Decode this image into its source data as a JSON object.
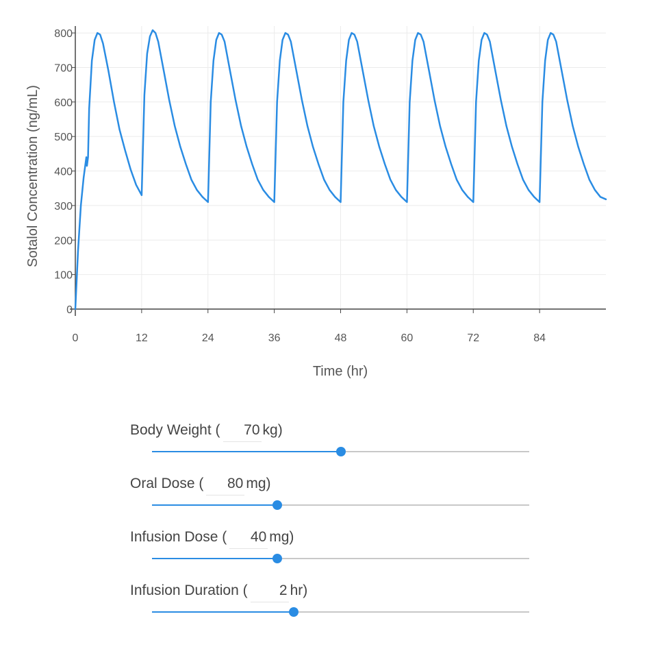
{
  "chart_data": {
    "type": "line",
    "xlabel": "Time (hr)",
    "ylabel": "Sotalol Concentration (ng/mL)",
    "xlim": [
      0,
      96
    ],
    "ylim": [
      0,
      820
    ],
    "xticks": [
      0,
      12,
      24,
      36,
      48,
      60,
      72,
      84
    ],
    "yticks": [
      0,
      100,
      200,
      300,
      400,
      500,
      600,
      700,
      800
    ],
    "grid": true,
    "line_color": "#2a8ce3",
    "series": [
      {
        "x": [
          0,
          0.5,
          1,
          1.5,
          2,
          2.1,
          2.3,
          2.5,
          3,
          3.5,
          4,
          4.5,
          5,
          5.5,
          6,
          7,
          8,
          9,
          10,
          11,
          12,
          12.5,
          13,
          13.5,
          14,
          14.5,
          15,
          16,
          17,
          18,
          19,
          20,
          21,
          22,
          23,
          24,
          24.5,
          25,
          25.5,
          26,
          26.5,
          27,
          28,
          29,
          30,
          31,
          32,
          33,
          34,
          35,
          36,
          36.5,
          37,
          37.5,
          38,
          38.5,
          39,
          40,
          41,
          42,
          43,
          44,
          45,
          46,
          47,
          48,
          48.5,
          49,
          49.5,
          50,
          50.5,
          51,
          52,
          53,
          54,
          55,
          56,
          57,
          58,
          59,
          60,
          60.5,
          61,
          61.5,
          62,
          62.5,
          63,
          64,
          65,
          66,
          67,
          68,
          69,
          70,
          71,
          72,
          72.5,
          73,
          73.5,
          74,
          74.5,
          75,
          76,
          77,
          78,
          79,
          80,
          81,
          82,
          83,
          84,
          84.5,
          85,
          85.5,
          86,
          86.5,
          87,
          88,
          89,
          90,
          91,
          92,
          93,
          94,
          95,
          96
        ],
        "y": [
          0,
          170,
          300,
          380,
          440,
          415,
          440,
          580,
          720,
          780,
          800,
          795,
          770,
          730,
          690,
          600,
          520,
          460,
          405,
          360,
          330,
          620,
          740,
          790,
          808,
          800,
          775,
          690,
          605,
          530,
          470,
          420,
          375,
          345,
          325,
          310,
          600,
          720,
          780,
          800,
          795,
          775,
          690,
          605,
          530,
          470,
          420,
          375,
          345,
          325,
          310,
          600,
          720,
          780,
          800,
          795,
          775,
          690,
          605,
          530,
          470,
          420,
          375,
          345,
          325,
          310,
          600,
          720,
          780,
          800,
          795,
          775,
          690,
          605,
          530,
          470,
          420,
          375,
          345,
          325,
          310,
          600,
          720,
          780,
          800,
          795,
          775,
          690,
          605,
          530,
          470,
          420,
          375,
          345,
          325,
          310,
          600,
          720,
          780,
          800,
          795,
          775,
          690,
          605,
          530,
          470,
          420,
          375,
          345,
          325,
          310,
          600,
          720,
          780,
          800,
          795,
          775,
          690,
          605,
          530,
          470,
          420,
          375,
          345,
          325,
          318
        ]
      }
    ]
  },
  "controls": {
    "weight": {
      "label": "Body Weight (",
      "value": "70",
      "unit": "kg)",
      "fraction": 0.5
    },
    "oral": {
      "label": "Oral Dose (",
      "value": "80",
      "unit": "mg)",
      "fraction": 0.333
    },
    "infusion": {
      "label": "Infusion Dose (",
      "value": "40",
      "unit": "mg)",
      "fraction": 0.333
    },
    "duration": {
      "label": "Infusion Duration (",
      "value": "2",
      "unit": "hr)",
      "fraction": 0.375
    }
  }
}
